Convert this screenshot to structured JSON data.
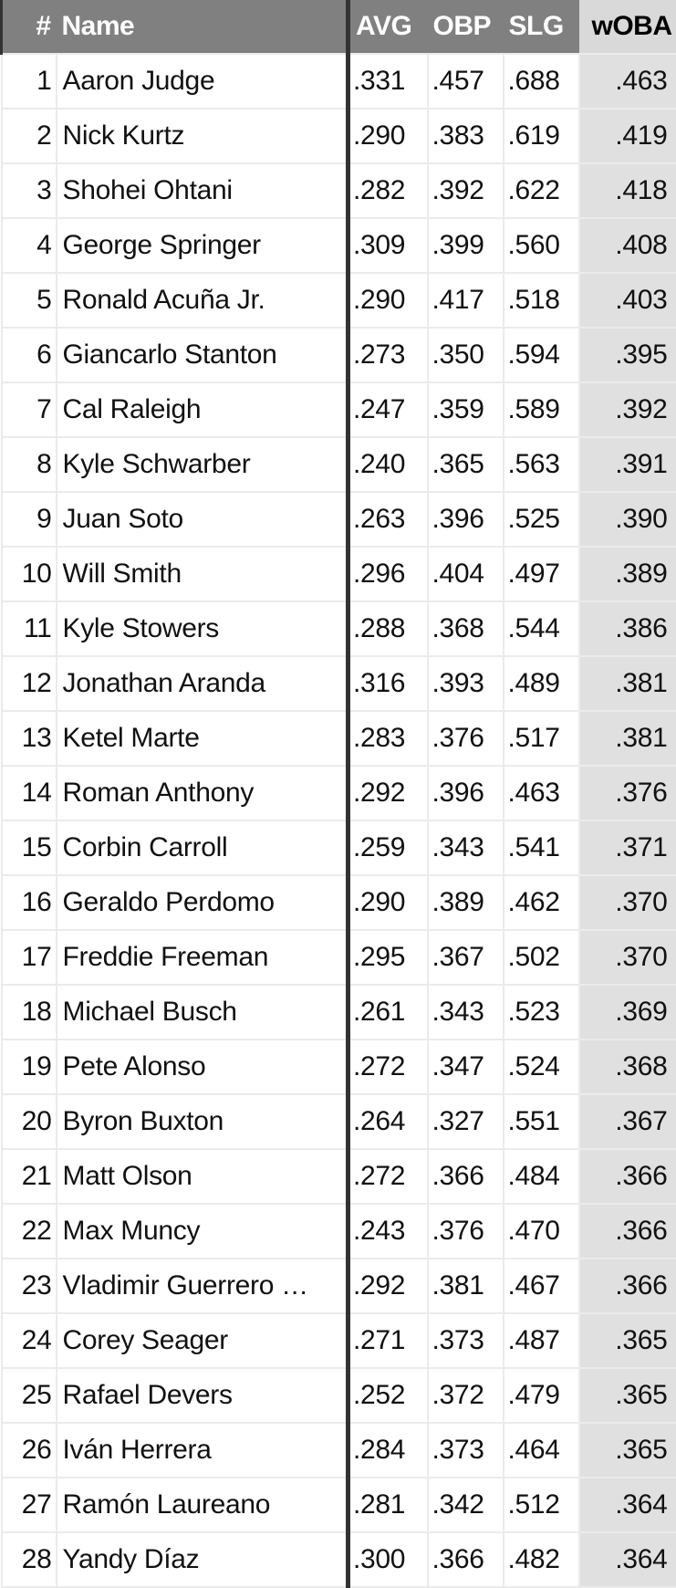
{
  "headers": {
    "rank": "#",
    "name": "Name",
    "avg": "AVG",
    "obp": "OBP",
    "slg": "SLG",
    "woba": "wOBA"
  },
  "rows": [
    [
      "1",
      "Aaron Judge",
      ".331",
      ".457",
      ".688",
      ".463"
    ],
    [
      "2",
      "Nick Kurtz",
      ".290",
      ".383",
      ".619",
      ".419"
    ],
    [
      "3",
      "Shohei Ohtani",
      ".282",
      ".392",
      ".622",
      ".418"
    ],
    [
      "4",
      "George Springer",
      ".309",
      ".399",
      ".560",
      ".408"
    ],
    [
      "5",
      "Ronald Acuña Jr.",
      ".290",
      ".417",
      ".518",
      ".403"
    ],
    [
      "6",
      "Giancarlo Stanton",
      ".273",
      ".350",
      ".594",
      ".395"
    ],
    [
      "7",
      "Cal Raleigh",
      ".247",
      ".359",
      ".589",
      ".392"
    ],
    [
      "8",
      "Kyle Schwarber",
      ".240",
      ".365",
      ".563",
      ".391"
    ],
    [
      "9",
      "Juan Soto",
      ".263",
      ".396",
      ".525",
      ".390"
    ],
    [
      "10",
      "Will Smith",
      ".296",
      ".404",
      ".497",
      ".389"
    ],
    [
      "11",
      "Kyle Stowers",
      ".288",
      ".368",
      ".544",
      ".386"
    ],
    [
      "12",
      "Jonathan Aranda",
      ".316",
      ".393",
      ".489",
      ".381"
    ],
    [
      "13",
      "Ketel Marte",
      ".283",
      ".376",
      ".517",
      ".381"
    ],
    [
      "14",
      "Roman Anthony",
      ".292",
      ".396",
      ".463",
      ".376"
    ],
    [
      "15",
      "Corbin Carroll",
      ".259",
      ".343",
      ".541",
      ".371"
    ],
    [
      "16",
      "Geraldo Perdomo",
      ".290",
      ".389",
      ".462",
      ".370"
    ],
    [
      "17",
      "Freddie Freeman",
      ".295",
      ".367",
      ".502",
      ".370"
    ],
    [
      "18",
      "Michael Busch",
      ".261",
      ".343",
      ".523",
      ".369"
    ],
    [
      "19",
      "Pete Alonso",
      ".272",
      ".347",
      ".524",
      ".368"
    ],
    [
      "20",
      "Byron Buxton",
      ".264",
      ".327",
      ".551",
      ".367"
    ],
    [
      "21",
      "Matt Olson",
      ".272",
      ".366",
      ".484",
      ".366"
    ],
    [
      "22",
      "Max Muncy",
      ".243",
      ".376",
      ".470",
      ".366"
    ],
    [
      "23",
      "Vladimir Guerrero …",
      ".292",
      ".381",
      ".467",
      ".366"
    ],
    [
      "24",
      "Corey Seager",
      ".271",
      ".373",
      ".487",
      ".365"
    ],
    [
      "25",
      "Rafael Devers",
      ".252",
      ".372",
      ".479",
      ".365"
    ],
    [
      "26",
      "Iván Herrera",
      ".284",
      ".373",
      ".464",
      ".365"
    ],
    [
      "27",
      "Ramón Laureano",
      ".281",
      ".342",
      ".512",
      ".364"
    ],
    [
      "28",
      "Yandy Díaz",
      ".300",
      ".366",
      ".482",
      ".364"
    ]
  ]
}
